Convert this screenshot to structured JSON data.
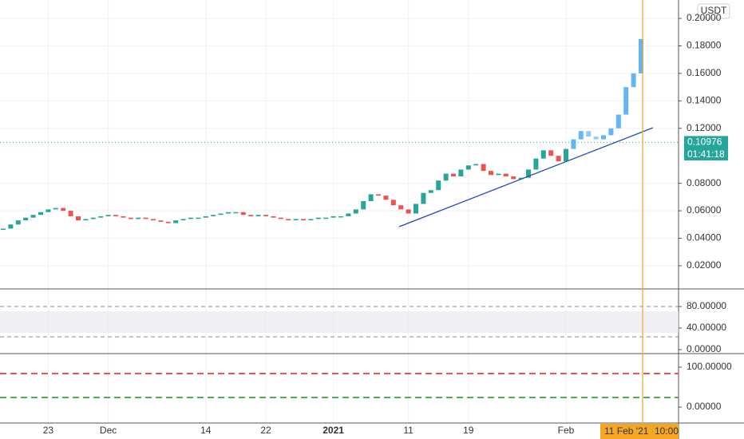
{
  "chart_data": [
    {
      "type": "candlestick",
      "currency": "USDT",
      "last_price": {
        "value": 0.10976,
        "label": "0.10976"
      },
      "countdown": "01:41:18",
      "cursor_date": "11 Feb '21",
      "cursor_time": "10:00",
      "categories": [
        null,
        null,
        null,
        null,
        null,
        null,
        "23",
        null,
        null,
        null,
        null,
        null,
        null,
        null,
        "Dec",
        null,
        null,
        null,
        null,
        null,
        null,
        null,
        null,
        null,
        null,
        null,
        null,
        "14",
        null,
        null,
        null,
        null,
        null,
        null,
        null,
        "22",
        null,
        null,
        null,
        null,
        null,
        null,
        null,
        null,
        "2021",
        null,
        null,
        null,
        null,
        null,
        null,
        null,
        null,
        null,
        "11",
        null,
        null,
        null,
        null,
        null,
        null,
        null,
        "19",
        null,
        null,
        null,
        null,
        null,
        null,
        null,
        null,
        null,
        null,
        null,
        null,
        "Feb",
        null,
        null,
        null,
        null,
        null,
        null,
        null,
        null,
        null,
        null
      ],
      "series": [
        {
          "color": "#26a69a",
          "down_color": "#ef5350",
          "values": [
            0.047,
            0.05,
            0.053,
            0.055,
            0.057,
            0.059,
            0.061,
            0.062,
            0.06,
            0.056,
            0.053,
            0.054,
            0.055,
            0.056,
            0.057,
            0.056,
            0.055,
            0.054,
            0.055,
            0.054,
            0.053,
            0.052,
            0.051,
            0.053,
            0.054,
            0.055,
            0.055,
            0.056,
            0.057,
            0.058,
            0.059,
            0.059,
            0.057,
            0.056,
            0.057,
            0.056,
            0.055,
            0.054,
            0.053,
            0.054,
            0.053,
            0.054,
            0.055,
            0.055,
            0.056,
            0.056,
            0.058,
            0.061,
            0.067,
            0.072,
            0.071,
            0.068,
            0.064,
            0.061,
            0.058,
            0.065,
            0.073,
            0.075,
            0.082,
            0.087,
            0.085,
            0.09,
            0.093,
            0.094,
            0.089,
            0.086,
            0.087,
            0.085,
            0.083,
            0.084,
            0.09,
            0.098,
            0.104,
            0.1,
            0.096,
            0.105,
            null,
            null,
            null,
            null,
            null,
            null,
            null,
            null,
            null,
            null
          ]
        },
        {
          "color": "#64b5f6",
          "down_color": "#90caf9",
          "values": [
            null,
            null,
            null,
            null,
            null,
            null,
            null,
            null,
            null,
            null,
            null,
            null,
            null,
            null,
            null,
            null,
            null,
            null,
            null,
            null,
            null,
            null,
            null,
            null,
            null,
            null,
            null,
            null,
            null,
            null,
            null,
            null,
            null,
            null,
            null,
            null,
            null,
            null,
            null,
            null,
            null,
            null,
            null,
            null,
            null,
            null,
            null,
            null,
            null,
            null,
            null,
            null,
            null,
            null,
            null,
            null,
            null,
            null,
            null,
            null,
            null,
            null,
            null,
            null,
            null,
            null,
            null,
            null,
            null,
            null,
            null,
            null,
            null,
            null,
            null,
            null,
            0.112,
            0.118,
            0.114,
            0.112,
            0.115,
            0.12,
            0.13,
            0.15,
            0.16,
            0.185
          ]
        }
      ],
      "ylim": [
        0.0031,
        0.2134
      ],
      "yticks": [
        {
          "value": 0.02,
          "label": "0.02000"
        },
        {
          "value": 0.04,
          "label": "0.04000"
        },
        {
          "value": 0.06,
          "label": "0.06000"
        },
        {
          "value": 0.08,
          "label": "0.08000"
        },
        {
          "value": 0.12,
          "label": "0.12000"
        },
        {
          "value": 0.14,
          "label": "0.14000"
        },
        {
          "value": 0.16,
          "label": "0.16000"
        },
        {
          "value": 0.18,
          "label": "0.18000"
        },
        {
          "value": 0.2,
          "label": "0.20000"
        }
      ],
      "grid": true
    },
    {
      "type": "oscillator",
      "ylim": [
        -7.4,
        112.6
      ],
      "yticks": [
        {
          "value": 0,
          "label": "0.00000"
        },
        {
          "value": 40,
          "label": "40.00000"
        },
        {
          "value": 80,
          "label": "80.00000"
        }
      ]
    },
    {
      "type": "oscillator",
      "ylim": [
        -40,
        134
      ],
      "yticks": [
        {
          "value": 0,
          "label": "0.00000"
        },
        {
          "value": 100,
          "label": "100.00000"
        }
      ]
    }
  ]
}
